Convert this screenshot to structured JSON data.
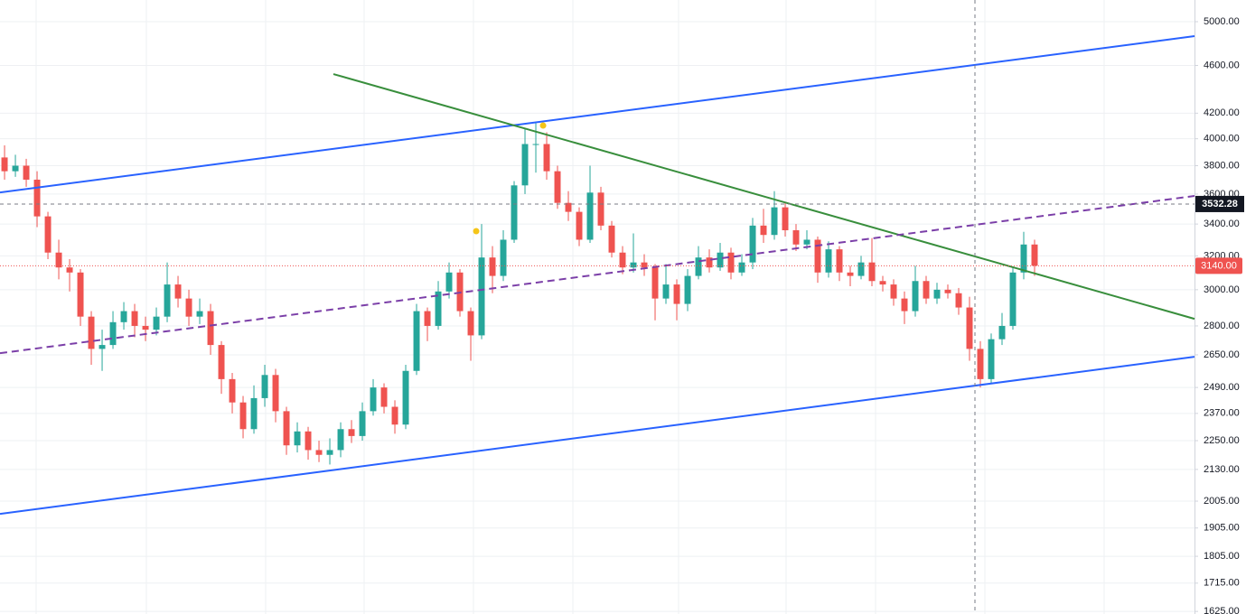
{
  "chart_data": {
    "type": "candlestick",
    "log_scale": true,
    "grid": true,
    "up_color": "#26a69a",
    "down_color": "#ef5350",
    "xlim": [
      -0.42,
      109.75
    ],
    "ylim": [
      1617,
      5211
    ],
    "yticks": [
      {
        "value": 5000,
        "label": "5000.00"
      },
      {
        "value": 4600,
        "label": "4600.00"
      },
      {
        "value": 4200,
        "label": "4200.00"
      },
      {
        "value": 4000,
        "label": "4000.00"
      },
      {
        "value": 3800,
        "label": "3800.00"
      },
      {
        "value": 3600,
        "label": "3600.00"
      },
      {
        "value": 3400,
        "label": "3400.00"
      },
      {
        "value": 3200,
        "label": "3200.00"
      },
      {
        "value": 3000,
        "label": "3000.00"
      },
      {
        "value": 2800,
        "label": "2800.00"
      },
      {
        "value": 2650,
        "label": "2650.00"
      },
      {
        "value": 2490,
        "label": "2490.00"
      },
      {
        "value": 2370,
        "label": "2370.00"
      },
      {
        "value": 2250,
        "label": "2250.00"
      },
      {
        "value": 2130,
        "label": "2130.00"
      },
      {
        "value": 2005,
        "label": "2005.00"
      },
      {
        "value": 1905,
        "label": "1905.00"
      },
      {
        "value": 1805,
        "label": "1805.00"
      },
      {
        "value": 1715,
        "label": "1715.00"
      },
      {
        "value": 1625,
        "label": "1625.00"
      }
    ],
    "open": [
      3860,
      3760,
      3800,
      3700,
      3450,
      3220,
      3130,
      3100,
      2850,
      2680,
      2700,
      2820,
      2880,
      2800,
      2780,
      2850,
      3030,
      2950,
      2850,
      2880,
      2700,
      2530,
      2420,
      2300,
      2440,
      2550,
      2380,
      2230,
      2290,
      2210,
      2190,
      2210,
      2300,
      2270,
      2380,
      2490,
      2400,
      2320,
      2570,
      2880,
      2800,
      2990,
      3100,
      2880,
      2750,
      3190,
      3080,
      3300,
      3660,
      3960,
      3960,
      3760,
      3540,
      3480,
      3300,
      3610,
      3390,
      3220,
      3130,
      3160,
      3130,
      2950,
      3030,
      2920,
      3080,
      3190,
      3130,
      3220,
      3100,
      3160,
      3390,
      3330,
      3510,
      3360,
      3270,
      3300,
      3100,
      3240,
      3100,
      3080,
      3160,
      3050,
      3030,
      2950,
      2880,
      3050,
      2950,
      3000,
      2980,
      2900,
      2680,
      2530,
      2730,
      2800,
      3100,
      3270
    ],
    "high": [
      3950,
      3880,
      3850,
      3760,
      3480,
      3300,
      3180,
      3120,
      2880,
      2780,
      2880,
      2930,
      2920,
      2850,
      2900,
      3160,
      3080,
      3000,
      2950,
      2920,
      2720,
      2560,
      2450,
      2500,
      2600,
      2580,
      2400,
      2330,
      2310,
      2250,
      2260,
      2330,
      2340,
      2420,
      2530,
      2510,
      2430,
      2600,
      2920,
      2900,
      3050,
      3160,
      3120,
      2900,
      3400,
      3260,
      3360,
      3690,
      4080,
      4120,
      4050,
      3800,
      3620,
      3510,
      3800,
      3650,
      3420,
      3260,
      3340,
      3210,
      3150,
      3150,
      3060,
      3120,
      3260,
      3240,
      3280,
      3250,
      3210,
      3440,
      3500,
      3620,
      3540,
      3400,
      3360,
      3320,
      3290,
      3260,
      3140,
      3200,
      3310,
      3080,
      3060,
      2990,
      3140,
      3080,
      3040,
      3030,
      3010,
      2960,
      2720,
      2760,
      2870,
      3130,
      3350,
      3300
    ],
    "low": [
      3700,
      3720,
      3650,
      3380,
      3180,
      3060,
      2990,
      2800,
      2600,
      2570,
      2680,
      2780,
      2740,
      2720,
      2750,
      2820,
      2900,
      2800,
      2810,
      2650,
      2460,
      2370,
      2260,
      2280,
      2400,
      2330,
      2190,
      2200,
      2170,
      2160,
      2150,
      2180,
      2240,
      2250,
      2360,
      2370,
      2280,
      2300,
      2550,
      2720,
      2780,
      2950,
      2850,
      2620,
      2730,
      2980,
      3050,
      3280,
      3600,
      3750,
      3700,
      3500,
      3420,
      3260,
      3280,
      3360,
      3190,
      3090,
      3100,
      3080,
      2830,
      2920,
      2830,
      2880,
      3060,
      3100,
      3110,
      3060,
      3080,
      3120,
      3280,
      3300,
      3320,
      3230,
      3240,
      3040,
      3070,
      3050,
      3020,
      3060,
      3020,
      2990,
      2910,
      2810,
      2850,
      2920,
      2920,
      2950,
      2860,
      2620,
      2490,
      2510,
      2700,
      2780,
      3060,
      3080
    ],
    "close": [
      3760,
      3800,
      3700,
      3450,
      3220,
      3130,
      3100,
      2850,
      2680,
      2700,
      2820,
      2880,
      2800,
      2780,
      2850,
      3030,
      2950,
      2850,
      2880,
      2700,
      2530,
      2420,
      2300,
      2440,
      2550,
      2380,
      2230,
      2290,
      2210,
      2190,
      2210,
      2300,
      2270,
      2380,
      2490,
      2400,
      2320,
      2570,
      2880,
      2800,
      2990,
      3100,
      2880,
      2750,
      3190,
      3080,
      3300,
      3660,
      3960,
      3960,
      3760,
      3540,
      3480,
      3300,
      3610,
      3390,
      3220,
      3130,
      3160,
      3130,
      2950,
      3030,
      2920,
      3080,
      3190,
      3130,
      3220,
      3100,
      3160,
      3390,
      3330,
      3510,
      3360,
      3270,
      3300,
      3100,
      3240,
      3100,
      3080,
      3160,
      3050,
      3030,
      2950,
      2880,
      3050,
      2950,
      3000,
      2980,
      2900,
      2680,
      2530,
      2730,
      2800,
      3100,
      3270,
      3140
    ],
    "trendlines": [
      {
        "color": "#2962ff",
        "dashed": false,
        "from": [
          -0.42,
          3611
        ],
        "to": [
          109.75,
          4864
        ]
      },
      {
        "color": "#2962ff",
        "dashed": false,
        "from": [
          -0.42,
          1957
        ],
        "to": [
          109.75,
          2640
        ]
      },
      {
        "color": "#388e3c",
        "dashed": false,
        "from": [
          30.33,
          4525
        ],
        "to": [
          109.75,
          2838
        ]
      },
      {
        "color": "#7b3fa8",
        "dashed": true,
        "from": [
          -0.42,
          2658
        ],
        "to": [
          109.75,
          3587
        ]
      }
    ],
    "markers": [
      {
        "index": 43.5,
        "price": 3354
      },
      {
        "index": 49.67,
        "price": 4102
      }
    ],
    "crosshair": {
      "index": 89.5,
      "price": 3532.28
    },
    "last_price": {
      "value": 3140,
      "label": "3140.00"
    }
  }
}
